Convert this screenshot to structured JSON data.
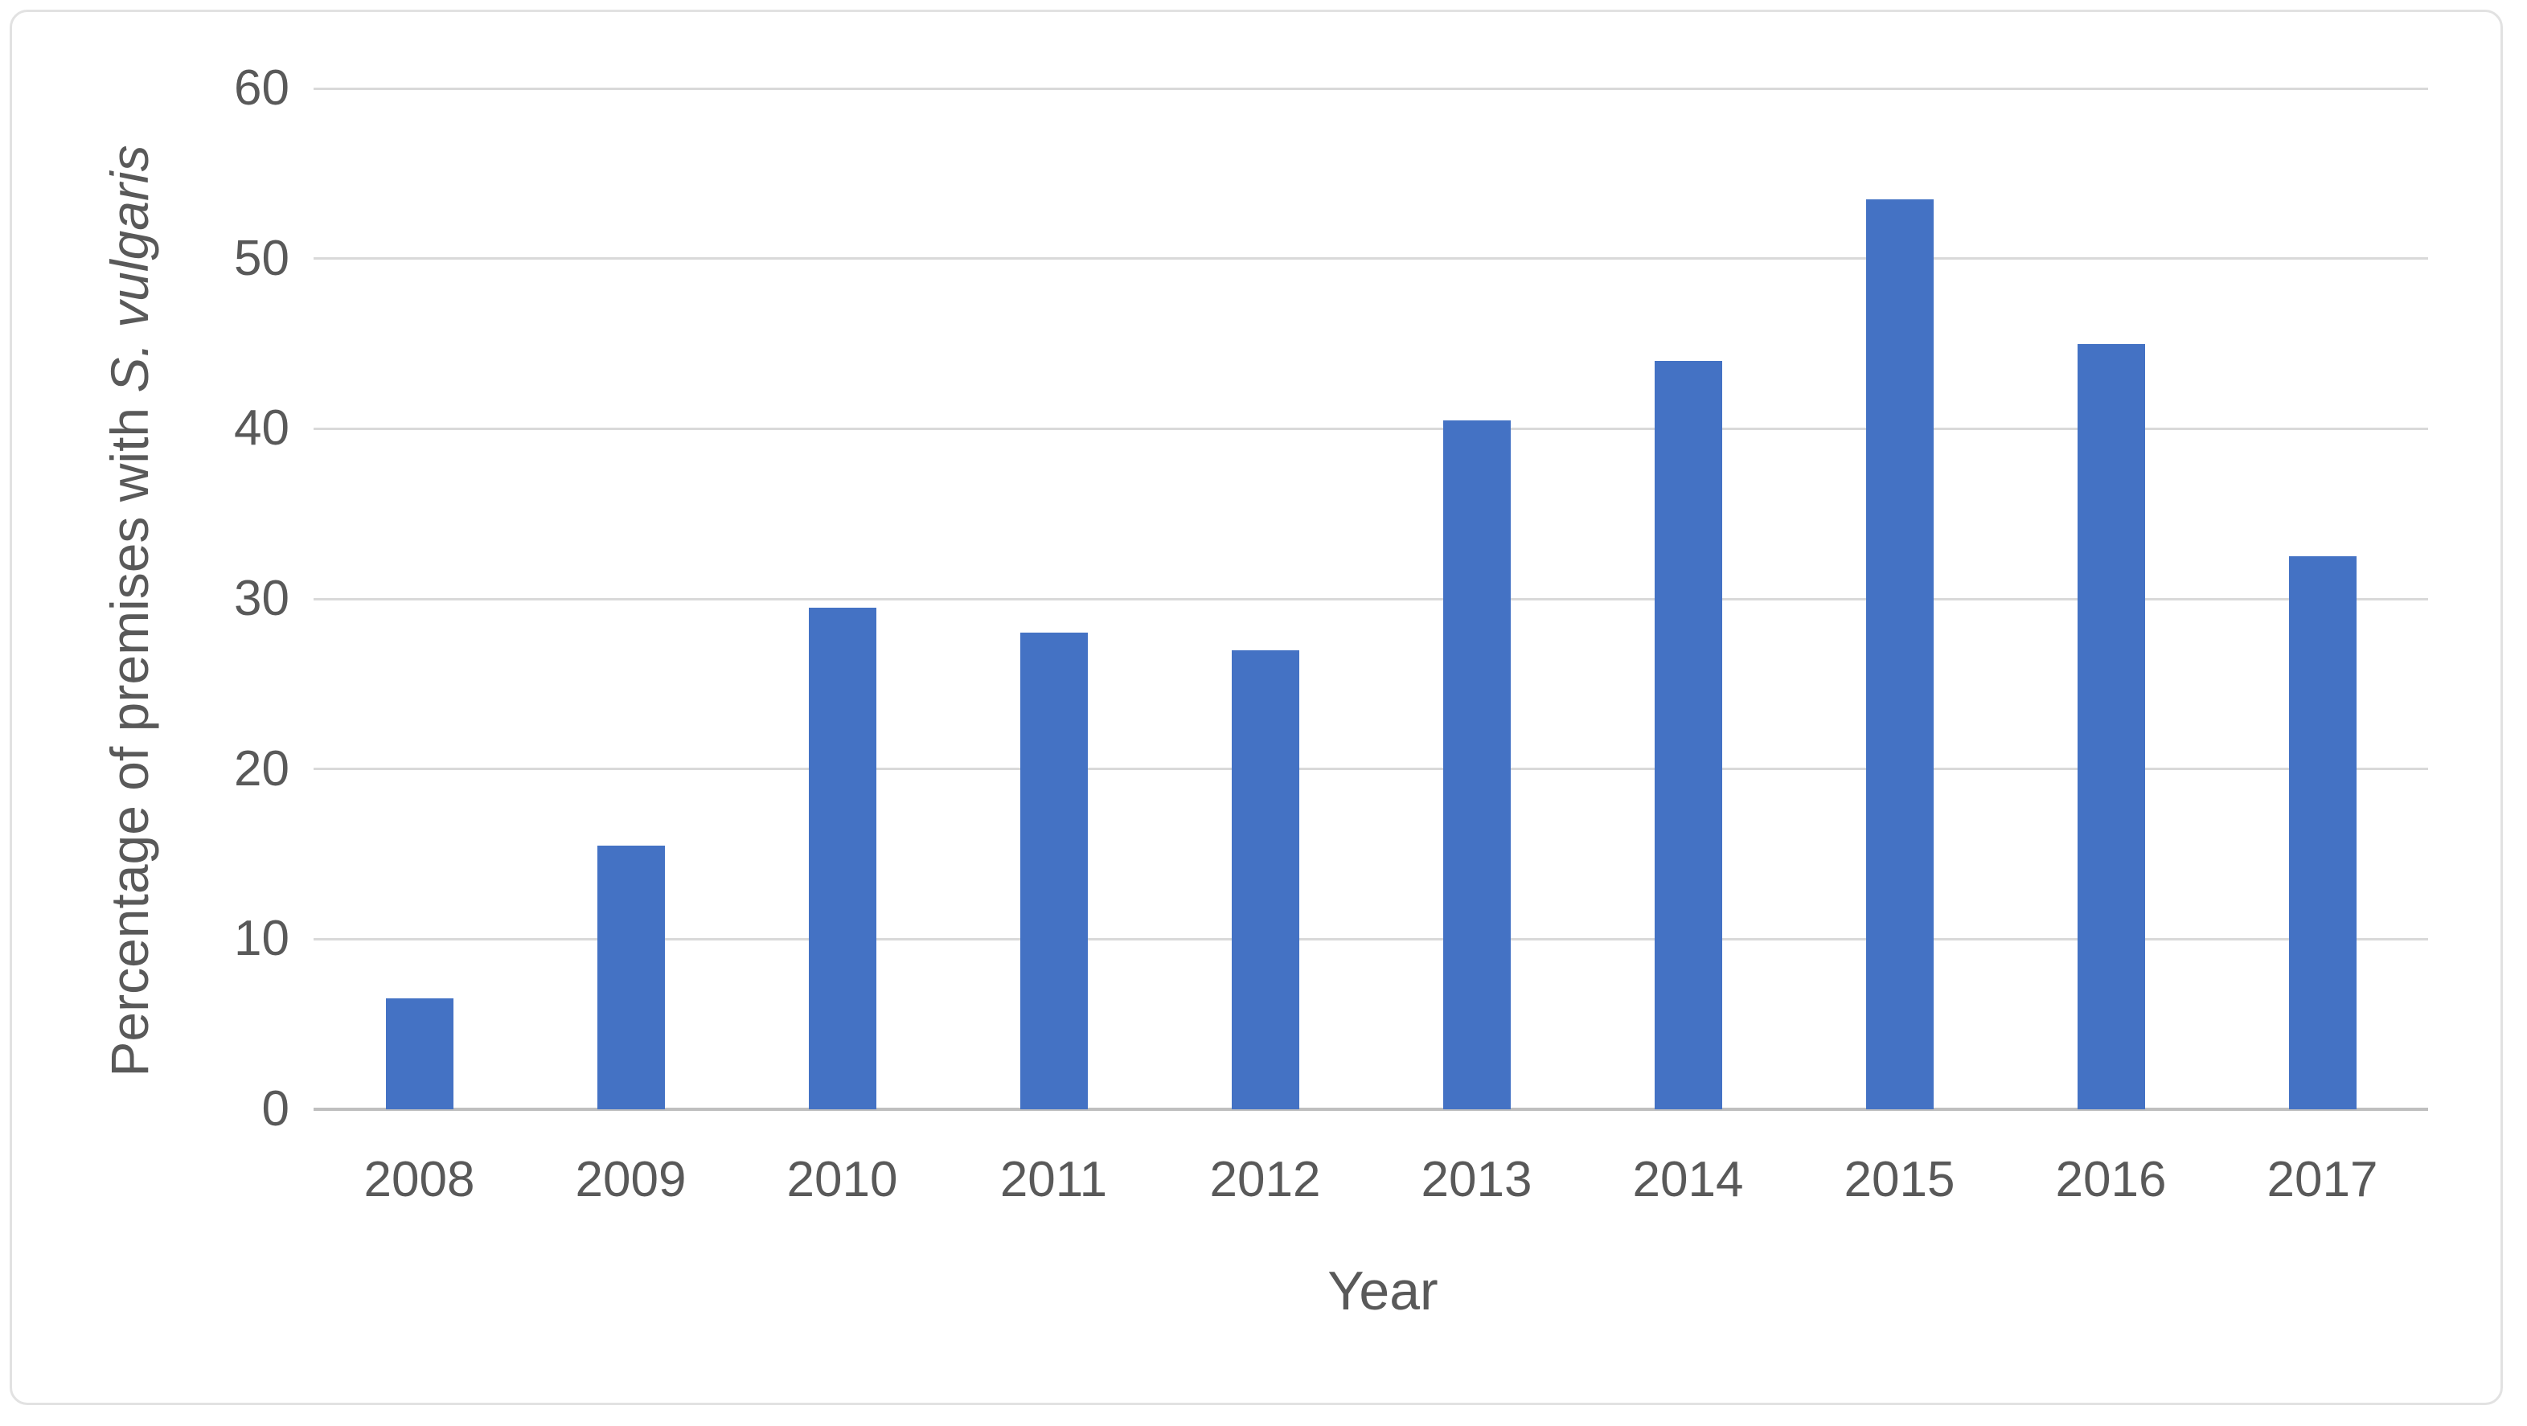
{
  "chart_data": {
    "type": "bar",
    "title": "",
    "categories": [
      "2008",
      "2009",
      "2010",
      "2011",
      "2012",
      "2013",
      "2014",
      "2015",
      "2016",
      "2017"
    ],
    "values": [
      6.5,
      15.5,
      29.5,
      28,
      27,
      40.5,
      44,
      53.5,
      45,
      32.5
    ],
    "xlabel": "Year",
    "ylabel_prefix": "Percentage of premises with ",
    "ylabel_italic": "S. vulgaris",
    "ylim": [
      0,
      60
    ],
    "yticks": [
      0,
      10,
      20,
      30,
      40,
      50,
      60
    ],
    "grid": "horizontal-only",
    "legend_position": "none",
    "series_name": "Percentage of premises with S. vulgaris"
  },
  "colors": {
    "bar": "#4472c4",
    "gridline": "#d9d9d9",
    "axis_line": "#bfbfbf",
    "text": "#595959",
    "frame_border": "#e2e2e2",
    "background": "#ffffff"
  }
}
